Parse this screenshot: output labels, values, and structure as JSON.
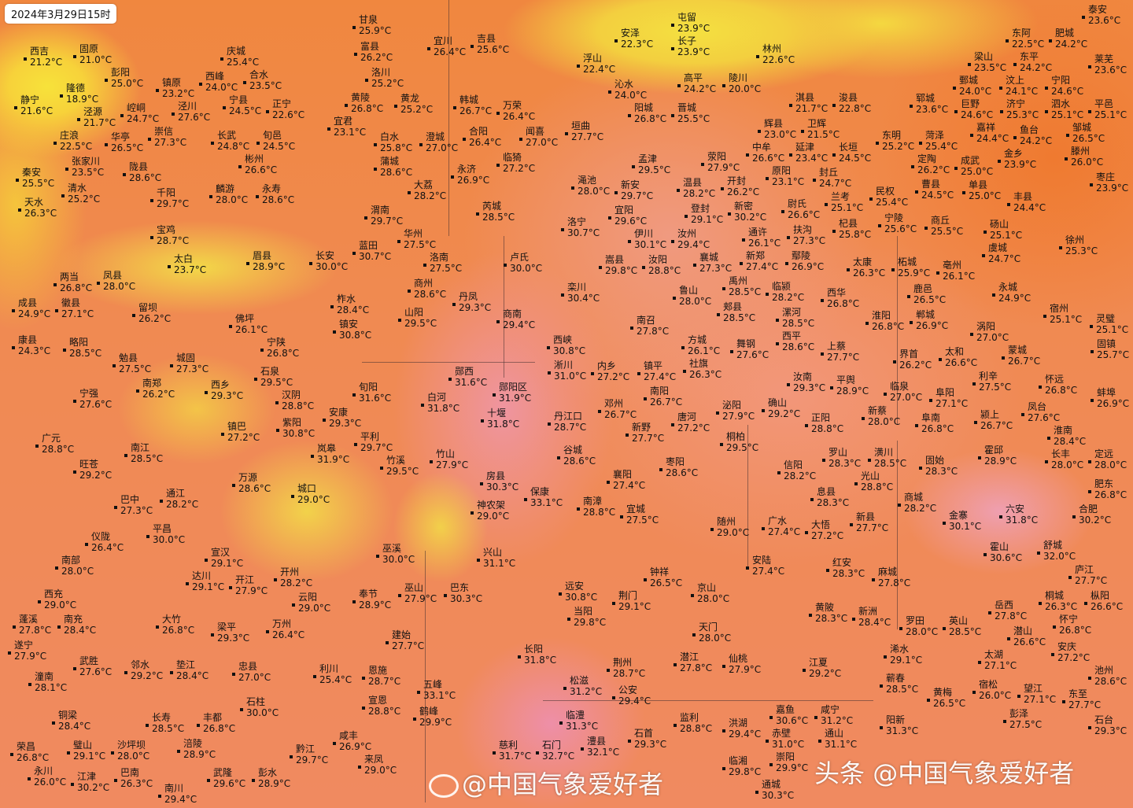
{
  "timestamp": "2024年3月29日15时",
  "watermarks": {
    "weibo": "@中国气象爱好者",
    "toutiao_brand": "头条",
    "toutiao": "@中国气象爱好者"
  },
  "colors": {
    "cool": "#f7e23a",
    "warm": "#f08a52",
    "hot": "#ef95a0",
    "label": "#111111"
  },
  "cities": [
    {
      "name": "西吉",
      "temp": "21.2°C"
    },
    {
      "name": "固原",
      "temp": "21.0°C"
    },
    {
      "name": "彭阳",
      "temp": "25.0°C"
    },
    {
      "name": "隆德",
      "temp": "18.9°C"
    },
    {
      "name": "静宁",
      "temp": "21.6°C"
    },
    {
      "name": "泾源",
      "temp": "21.7°C"
    },
    {
      "name": "庄浪",
      "temp": "22.5°C"
    },
    {
      "name": "张家川",
      "temp": "23.5°C"
    },
    {
      "name": "清水",
      "temp": "25.2°C"
    },
    {
      "name": "秦安",
      "temp": "25.5°C"
    },
    {
      "name": "天水",
      "temp": "26.3°C"
    },
    {
      "name": "镇原",
      "temp": "23.2°C"
    },
    {
      "name": "西峰",
      "temp": "24.0°C"
    },
    {
      "name": "崆峒",
      "temp": "24.7°C"
    },
    {
      "name": "华亭",
      "temp": "26.5°C"
    },
    {
      "name": "崇信",
      "temp": "27.3°C"
    },
    {
      "name": "泾川",
      "temp": "27.6°C"
    },
    {
      "name": "陇县",
      "temp": "28.6°C"
    },
    {
      "name": "长武",
      "temp": "24.8°C"
    },
    {
      "name": "庆城",
      "temp": "25.4°C"
    },
    {
      "name": "合水",
      "temp": "23.5°C"
    },
    {
      "name": "宁县",
      "temp": "24.5°C"
    },
    {
      "name": "正宁",
      "temp": "22.6°C"
    },
    {
      "name": "甘泉",
      "temp": "25.9°C"
    },
    {
      "name": "富县",
      "temp": "26.2°C"
    },
    {
      "name": "洛川",
      "temp": "25.2°C"
    },
    {
      "name": "宜川",
      "temp": "26.4°C"
    },
    {
      "name": "吉县",
      "temp": "25.6°C"
    },
    {
      "name": "黄陵",
      "temp": "26.8°C"
    },
    {
      "name": "黄龙",
      "temp": "25.2°C"
    },
    {
      "name": "宜君",
      "temp": "23.1°C"
    },
    {
      "name": "韩城",
      "temp": "26.7°C"
    },
    {
      "name": "旬邑",
      "temp": "24.5°C"
    },
    {
      "name": "彬州",
      "temp": "26.6°C"
    },
    {
      "name": "麟游",
      "temp": "28.0°C"
    },
    {
      "name": "永寿",
      "temp": "28.6°C"
    },
    {
      "name": "千阳",
      "temp": "29.7°C"
    },
    {
      "name": "宝鸡",
      "temp": "28.7°C"
    },
    {
      "name": "太白",
      "temp": "23.7°C"
    },
    {
      "name": "眉县",
      "temp": "28.9°C"
    },
    {
      "name": "长安",
      "temp": "30.0°C"
    },
    {
      "name": "蓝田",
      "temp": "30.7°C"
    },
    {
      "name": "渭南",
      "temp": "29.7°C"
    },
    {
      "name": "华州",
      "temp": "27.5°C"
    },
    {
      "name": "白水",
      "temp": "25.8°C"
    },
    {
      "name": "澄城",
      "temp": "27.0°C"
    },
    {
      "name": "蒲城",
      "temp": "28.6°C"
    },
    {
      "name": "大荔",
      "temp": "28.2°C"
    },
    {
      "name": "合阳",
      "temp": "26.4°C"
    },
    {
      "name": "永济",
      "temp": "26.9°C"
    },
    {
      "name": "芮城",
      "temp": "28.5°C"
    },
    {
      "name": "临猗",
      "temp": "27.2°C"
    },
    {
      "name": "万荣",
      "temp": "26.4°C"
    },
    {
      "name": "闻喜",
      "temp": "27.0°C"
    },
    {
      "name": "垣曲",
      "temp": "27.7°C"
    },
    {
      "name": "渑池",
      "temp": "28.0°C"
    },
    {
      "name": "新安",
      "temp": "29.7°C"
    },
    {
      "name": "孟津",
      "temp": "29.5°C"
    },
    {
      "name": "洛宁",
      "temp": "30.7°C"
    },
    {
      "name": "宜阳",
      "temp": "29.6°C"
    },
    {
      "name": "伊川",
      "temp": "30.1°C"
    },
    {
      "name": "嵩县",
      "temp": "29.8°C"
    },
    {
      "name": "汝阳",
      "temp": "28.8°C"
    },
    {
      "name": "汝州",
      "temp": "29.4°C"
    },
    {
      "name": "登封",
      "temp": "29.1°C"
    },
    {
      "name": "新密",
      "temp": "30.2°C"
    },
    {
      "name": "卢氏",
      "temp": "30.0°C"
    },
    {
      "name": "洛南",
      "temp": "27.5°C"
    },
    {
      "name": "商州",
      "temp": "28.6°C"
    },
    {
      "name": "丹凤",
      "temp": "29.3°C"
    },
    {
      "name": "山阳",
      "temp": "29.5°C"
    },
    {
      "name": "柞水",
      "temp": "28.4°C"
    },
    {
      "name": "镇安",
      "temp": "30.8°C"
    },
    {
      "name": "商南",
      "temp": "29.4°C"
    },
    {
      "name": "栾川",
      "temp": "30.4°C"
    },
    {
      "name": "西峡",
      "temp": "30.8°C"
    },
    {
      "name": "淅川",
      "temp": "31.0°C"
    },
    {
      "name": "内乡",
      "temp": "27.2°C"
    },
    {
      "name": "镇平",
      "temp": "27.4°C"
    },
    {
      "name": "南阳",
      "temp": "26.7°C"
    },
    {
      "name": "南召",
      "temp": "27.8°C"
    },
    {
      "name": "方城",
      "temp": "26.1°C"
    },
    {
      "name": "社旗",
      "temp": "26.3°C"
    },
    {
      "name": "鲁山",
      "temp": "28.0°C"
    },
    {
      "name": "郧西",
      "temp": "31.6°C"
    },
    {
      "name": "郧阳区",
      "temp": "31.9°C"
    },
    {
      "name": "十堰",
      "temp": "31.8°C"
    },
    {
      "name": "白河",
      "temp": "31.8°C"
    },
    {
      "name": "旬阳",
      "temp": "31.6°C"
    },
    {
      "name": "安康",
      "temp": "29.3°C"
    },
    {
      "name": "紫阳",
      "temp": "30.8°C"
    },
    {
      "name": "岚皋",
      "temp": "31.9°C"
    },
    {
      "name": "平利",
      "temp": "29.7°C"
    },
    {
      "name": "竹溪",
      "temp": "29.5°C"
    },
    {
      "name": "竹山",
      "temp": "27.9°C"
    },
    {
      "name": "房县",
      "temp": "30.3°C"
    },
    {
      "name": "保康",
      "temp": "33.1°C"
    },
    {
      "name": "神农架",
      "temp": "29.0°C"
    },
    {
      "name": "丹江口",
      "temp": "28.7°C"
    },
    {
      "name": "谷城",
      "temp": "28.6°C"
    },
    {
      "name": "邓州",
      "temp": "26.7°C"
    },
    {
      "name": "新野",
      "temp": "27.7°C"
    },
    {
      "name": "唐河",
      "temp": "27.2°C"
    },
    {
      "name": "泌阳",
      "temp": "27.9°C"
    },
    {
      "name": "桐柏",
      "temp": "29.5°C"
    },
    {
      "name": "襄阳",
      "temp": "27.4°C"
    },
    {
      "name": "枣阳",
      "temp": "28.6°C"
    },
    {
      "name": "南漳",
      "temp": "28.8°C"
    },
    {
      "name": "宜城",
      "temp": "27.5°C"
    },
    {
      "name": "随州",
      "temp": "29.0°C"
    },
    {
      "name": "广水",
      "temp": "27.4°C"
    },
    {
      "name": "大悟",
      "temp": "27.2°C"
    },
    {
      "name": "信阳",
      "temp": "28.2°C"
    },
    {
      "name": "罗山",
      "temp": "28.3°C"
    },
    {
      "name": "光山",
      "temp": "28.8°C"
    },
    {
      "name": "潢川",
      "temp": "28.5°C"
    },
    {
      "name": "商城",
      "temp": "28.2°C"
    },
    {
      "name": "新县",
      "temp": "27.7°C"
    },
    {
      "name": "固始",
      "temp": "28.3°C"
    },
    {
      "name": "金寨",
      "temp": "30.1°C"
    },
    {
      "name": "六安",
      "temp": "31.8°C"
    },
    {
      "name": "霍山",
      "temp": "30.6°C"
    },
    {
      "name": "舒城",
      "temp": "32.0°C"
    },
    {
      "name": "合肥",
      "temp": "30.2°C"
    },
    {
      "name": "肥东",
      "temp": "26.8°C"
    },
    {
      "name": "庐江",
      "temp": "27.7°C"
    },
    {
      "name": "桐城",
      "temp": "26.3°C"
    },
    {
      "name": "岳西",
      "temp": "27.8°C"
    },
    {
      "name": "潜山",
      "temp": "26.6°C"
    },
    {
      "name": "怀宁",
      "temp": "26.8°C"
    },
    {
      "name": "太湖",
      "temp": "27.1°C"
    },
    {
      "name": "安庆",
      "temp": "27.2°C"
    },
    {
      "name": "枞阳",
      "temp": "26.6°C"
    },
    {
      "name": "池州",
      "temp": "28.6°C"
    },
    {
      "name": "罗田",
      "temp": "28.0°C"
    },
    {
      "name": "英山",
      "temp": "28.5°C"
    },
    {
      "name": "红安",
      "temp": "28.3°C"
    },
    {
      "name": "麻城",
      "temp": "27.8°C"
    },
    {
      "name": "黄陂",
      "temp": "28.3°C"
    },
    {
      "name": "新洲",
      "temp": "28.4°C"
    },
    {
      "name": "浠水",
      "temp": "29.1°C"
    },
    {
      "name": "安陆",
      "temp": "27.4°C"
    },
    {
      "name": "钟祥",
      "temp": "26.5°C"
    },
    {
      "name": "荆门",
      "temp": "29.1°C"
    },
    {
      "name": "京山",
      "temp": "28.0°C"
    },
    {
      "name": "天门",
      "temp": "28.0°C"
    },
    {
      "name": "潜江",
      "temp": "27.8°C"
    },
    {
      "name": "仙桃",
      "temp": "27.9°C"
    },
    {
      "name": "荆州",
      "temp": "28.7°C"
    },
    {
      "name": "公安",
      "temp": "29.4°C"
    },
    {
      "name": "松滋",
      "temp": "31.2°C"
    },
    {
      "name": "当阳",
      "temp": "29.8°C"
    },
    {
      "name": "远安",
      "temp": "30.8°C"
    },
    {
      "name": "长阳",
      "temp": "31.8°C"
    },
    {
      "name": "巴东",
      "temp": "30.3°C"
    },
    {
      "name": "兴山",
      "temp": "31.1°C"
    },
    {
      "name": "巫溪",
      "temp": "30.0°C"
    },
    {
      "name": "巫山",
      "temp": "27.9°C"
    },
    {
      "name": "奉节",
      "temp": "28.9°C"
    },
    {
      "name": "建始",
      "temp": "27.7°C"
    },
    {
      "name": "恩施",
      "temp": "28.7°C"
    },
    {
      "name": "利川",
      "temp": "25.4°C"
    },
    {
      "name": "宣恩",
      "temp": "28.8°C"
    },
    {
      "name": "五峰",
      "temp": "33.1°C"
    },
    {
      "name": "鹤峰",
      "temp": "29.9°C"
    },
    {
      "name": "咸丰",
      "temp": "26.9°C"
    },
    {
      "name": "来凤",
      "temp": "29.0°C"
    },
    {
      "name": "石门",
      "temp": "32.7°C"
    },
    {
      "name": "澧县",
      "temp": "32.1°C"
    },
    {
      "name": "慈利",
      "temp": "31.7°C"
    },
    {
      "name": "临澧",
      "temp": "31.3°C"
    },
    {
      "name": "石首",
      "temp": "29.3°C"
    },
    {
      "name": "监利",
      "temp": "28.8°C"
    },
    {
      "name": "洪湖",
      "temp": "29.4°C"
    },
    {
      "name": "嘉鱼",
      "temp": "30.6°C"
    },
    {
      "name": "赤壁",
      "temp": "31.0°C"
    },
    {
      "name": "咸宁",
      "temp": "31.2°C"
    },
    {
      "name": "崇阳",
      "temp": "29.9°C"
    },
    {
      "name": "通城",
      "temp": "30.3°C"
    },
    {
      "name": "通山",
      "temp": "31.1°C"
    },
    {
      "name": "临湘",
      "temp": "29.8°C"
    },
    {
      "name": "江夏",
      "temp": "29.2°C"
    },
    {
      "name": "蕲春",
      "temp": "28.5°C"
    },
    {
      "name": "阳新",
      "temp": "31.3°C"
    },
    {
      "name": "黄梅",
      "temp": "26.5°C"
    },
    {
      "name": "宿松",
      "temp": "26.0°C"
    },
    {
      "name": "望江",
      "temp": "27.1°C"
    },
    {
      "name": "东至",
      "temp": "27.7°C"
    },
    {
      "name": "彭泽",
      "temp": "27.5°C"
    },
    {
      "name": "石台",
      "temp": "29.3°C"
    },
    {
      "name": "林州",
      "temp": "22.6°C"
    },
    {
      "name": "淇县",
      "temp": "21.7°C"
    },
    {
      "name": "浚县",
      "temp": "22.8°C"
    },
    {
      "name": "辉县",
      "temp": "23.0°C"
    },
    {
      "name": "卫辉",
      "temp": "21.5°C"
    },
    {
      "name": "延津",
      "temp": "23.4°C"
    },
    {
      "name": "封丘",
      "temp": "24.7°C"
    },
    {
      "name": "原阳",
      "temp": "23.1°C"
    },
    {
      "name": "长垣",
      "temp": "24.5°C"
    },
    {
      "name": "东明",
      "temp": "25.2°C"
    },
    {
      "name": "菏泽",
      "temp": "25.4°C"
    },
    {
      "name": "定陶",
      "temp": "26.2°C"
    },
    {
      "name": "曹县",
      "temp": "24.5°C"
    },
    {
      "name": "成武",
      "temp": "25.0°C"
    },
    {
      "name": "单县",
      "temp": "25.0°C"
    },
    {
      "name": "金乡",
      "temp": "23.9°C"
    },
    {
      "name": "鱼台",
      "temp": "24.2°C"
    },
    {
      "name": "丰县",
      "temp": "24.4°C"
    },
    {
      "name": "滕州",
      "temp": "26.0°C"
    },
    {
      "name": "枣庄",
      "temp": "23.9°C"
    },
    {
      "name": "徐州",
      "temp": "25.3°C"
    },
    {
      "name": "砀山",
      "temp": "25.1°C"
    },
    {
      "name": "永城",
      "temp": "24.9°C"
    },
    {
      "name": "宿州",
      "temp": "25.1°C"
    },
    {
      "name": "灵璧",
      "temp": "25.1°C"
    },
    {
      "name": "固镇",
      "temp": "25.7°C"
    },
    {
      "name": "涡阳",
      "temp": "27.0°C"
    },
    {
      "name": "蒙城",
      "temp": "26.7°C"
    },
    {
      "name": "利辛",
      "temp": "27.5°C"
    },
    {
      "name": "怀远",
      "temp": "26.8°C"
    },
    {
      "name": "蚌埠",
      "temp": "26.9°C"
    },
    {
      "name": "凤台",
      "temp": "27.6°C"
    },
    {
      "name": "淮南",
      "temp": "28.4°C"
    },
    {
      "name": "颍上",
      "temp": "26.7°C"
    },
    {
      "name": "阜南",
      "temp": "26.8°C"
    },
    {
      "name": "阜阳",
      "temp": "27.1°C"
    },
    {
      "name": "临泉",
      "temp": "27.0°C"
    },
    {
      "name": "界首",
      "temp": "26.2°C"
    },
    {
      "name": "太和",
      "temp": "26.6°C"
    },
    {
      "name": "霍邱",
      "temp": "28.9°C"
    },
    {
      "name": "定远",
      "temp": "28.0°C"
    },
    {
      "name": "长丰",
      "temp": "28.0°C"
    },
    {
      "name": "柘城",
      "temp": "25.9°C"
    },
    {
      "name": "鹿邑",
      "temp": "26.5°C"
    },
    {
      "name": "亳州",
      "temp": "26.1°C"
    },
    {
      "name": "商丘",
      "temp": "25.5°C"
    },
    {
      "name": "虞城",
      "temp": "24.7°C"
    },
    {
      "name": "宁陵",
      "temp": "25.6°C"
    },
    {
      "name": "民权",
      "temp": "25.4°C"
    },
    {
      "name": "兰考",
      "temp": "25.1°C"
    },
    {
      "name": "杞县",
      "temp": "25.8°C"
    },
    {
      "name": "太康",
      "temp": "26.3°C"
    },
    {
      "name": "西华",
      "temp": "26.8°C"
    },
    {
      "name": "淮阳",
      "temp": "26.8°C"
    },
    {
      "name": "郸城",
      "temp": "26.9°C"
    },
    {
      "name": "平舆",
      "temp": "28.9°C"
    },
    {
      "name": "新蔡",
      "temp": "28.0°C"
    },
    {
      "name": "正阳",
      "temp": "28.8°C"
    },
    {
      "name": "息县",
      "temp": "28.3°C"
    },
    {
      "name": "汝南",
      "temp": "29.3°C"
    },
    {
      "name": "确山",
      "temp": "29.2°C"
    },
    {
      "name": "西平",
      "temp": "28.6°C"
    },
    {
      "name": "上蔡",
      "temp": "27.7°C"
    },
    {
      "name": "漯河",
      "temp": "28.5°C"
    },
    {
      "name": "临颍",
      "temp": "28.2°C"
    },
    {
      "name": "鄢陵",
      "temp": "26.9°C"
    },
    {
      "name": "扶沟",
      "temp": "27.3°C"
    },
    {
      "name": "尉氏",
      "temp": "26.6°C"
    },
    {
      "name": "通许",
      "temp": "26.1°C"
    },
    {
      "name": "开封",
      "temp": "26.2°C"
    },
    {
      "name": "中牟",
      "temp": "26.6°C"
    },
    {
      "name": "新郑",
      "temp": "27.4°C"
    },
    {
      "name": "禹州",
      "temp": "28.5°C"
    },
    {
      "name": "郏县",
      "temp": "28.5°C"
    },
    {
      "name": "襄城",
      "temp": "27.3°C"
    },
    {
      "name": "舞钢",
      "temp": "27.6°C"
    },
    {
      "name": "荥阳",
      "temp": "27.9°C"
    },
    {
      "name": "温县",
      "temp": "28.2°C"
    },
    {
      "name": "沁水",
      "temp": "24.0°C"
    },
    {
      "name": "阳城",
      "temp": "26.8°C"
    },
    {
      "name": "晋城",
      "temp": "25.5°C"
    },
    {
      "name": "高平",
      "temp": "24.2°C"
    },
    {
      "name": "陵川",
      "temp": "20.0°C"
    },
    {
      "name": "屯留",
      "temp": "23.9°C"
    },
    {
      "name": "长子",
      "temp": "23.9°C"
    },
    {
      "name": "安泽",
      "temp": "22.3°C"
    },
    {
      "name": "浮山",
      "temp": "22.4°C"
    },
    {
      "name": "肥城",
      "temp": "24.2°C"
    },
    {
      "name": "泰安",
      "temp": "23.6°C"
    },
    {
      "name": "莱芜",
      "temp": "23.6°C"
    },
    {
      "name": "宁阳",
      "temp": "24.6°C"
    },
    {
      "name": "平邑",
      "temp": "25.1°C"
    },
    {
      "name": "泗水",
      "temp": "25.1°C"
    },
    {
      "name": "邹城",
      "temp": "26.5°C"
    },
    {
      "name": "济宁",
      "temp": "25.3°C"
    },
    {
      "name": "嘉祥",
      "temp": "24.4°C"
    },
    {
      "name": "巨野",
      "temp": "24.6°C"
    },
    {
      "name": "汶上",
      "temp": "24.1°C"
    },
    {
      "name": "东平",
      "temp": "24.2°C"
    },
    {
      "name": "梁山",
      "temp": "23.5°C"
    },
    {
      "name": "郓城",
      "temp": "23.6°C"
    },
    {
      "name": "鄄城",
      "temp": "24.0°C"
    },
    {
      "name": "东阿",
      "temp": "22.5°C"
    },
    {
      "name": "宁强",
      "temp": "27.6°C"
    },
    {
      "name": "略阳",
      "temp": "28.5°C"
    },
    {
      "name": "勉县",
      "temp": "27.5°C"
    },
    {
      "name": "南郑",
      "temp": "26.2°C"
    },
    {
      "name": "城固",
      "temp": "27.3°C"
    },
    {
      "name": "西乡",
      "temp": "29.3°C"
    },
    {
      "name": "石泉",
      "temp": "29.5°C"
    },
    {
      "name": "汉阴",
      "temp": "28.8°C"
    },
    {
      "name": "宁陕",
      "temp": "26.8°C"
    },
    {
      "name": "佛坪",
      "temp": "26.1°C"
    },
    {
      "name": "留坝",
      "temp": "26.2°C"
    },
    {
      "name": "凤县",
      "temp": "28.0°C"
    },
    {
      "name": "两当",
      "temp": "26.8°C"
    },
    {
      "name": "徽县",
      "temp": "27.1°C"
    },
    {
      "name": "成县",
      "temp": "24.9°C"
    },
    {
      "name": "康县",
      "temp": "24.3°C"
    },
    {
      "name": "镇巴",
      "temp": "27.2°C"
    },
    {
      "name": "广元",
      "temp": "28.8°C"
    },
    {
      "name": "旺苍",
      "temp": "29.2°C"
    },
    {
      "name": "南江",
      "temp": "28.5°C"
    },
    {
      "name": "通江",
      "temp": "28.2°C"
    },
    {
      "name": "巴中",
      "temp": "27.3°C"
    },
    {
      "name": "平昌",
      "temp": "30.0°C"
    },
    {
      "name": "仪陇",
      "temp": "26.4°C"
    },
    {
      "name": "南部",
      "temp": "28.0°C"
    },
    {
      "name": "万源",
      "temp": "28.6°C"
    },
    {
      "name": "城口",
      "temp": "29.0°C"
    },
    {
      "name": "宣汉",
      "temp": "29.1°C"
    },
    {
      "name": "达川",
      "temp": "29.1°C"
    },
    {
      "name": "开江",
      "temp": "27.9°C"
    },
    {
      "name": "开州",
      "temp": "28.2°C"
    },
    {
      "name": "云阳",
      "temp": "29.0°C"
    },
    {
      "name": "万州",
      "temp": "26.4°C"
    },
    {
      "name": "梁平",
      "temp": "29.3°C"
    },
    {
      "name": "忠县",
      "temp": "27.0°C"
    },
    {
      "name": "石柱",
      "temp": "30.0°C"
    },
    {
      "name": "丰都",
      "temp": "26.8°C"
    },
    {
      "name": "垫江",
      "temp": "28.4°C"
    },
    {
      "name": "长寿",
      "temp": "28.5°C"
    },
    {
      "name": "涪陵",
      "temp": "28.9°C"
    },
    {
      "name": "西充",
      "temp": "29.0°C"
    },
    {
      "name": "南充",
      "temp": "28.4°C"
    },
    {
      "name": "蓬溪",
      "temp": "27.8°C"
    },
    {
      "name": "大竹",
      "temp": "26.8°C"
    },
    {
      "name": "遂宁",
      "temp": "27.9°C"
    },
    {
      "name": "武胜",
      "temp": "27.6°C"
    },
    {
      "name": "邻水",
      "temp": "29.2°C"
    },
    {
      "name": "潼南",
      "temp": "28.1°C"
    },
    {
      "name": "铜梁",
      "temp": "28.4°C"
    },
    {
      "name": "璧山",
      "temp": "29.1°C"
    },
    {
      "name": "沙坪坝",
      "temp": "28.0°C"
    },
    {
      "name": "江津",
      "temp": "30.2°C"
    },
    {
      "name": "巴南",
      "temp": "26.3°C"
    },
    {
      "name": "永川",
      "temp": "26.0°C"
    },
    {
      "name": "荣昌",
      "temp": "26.8°C"
    },
    {
      "name": "南川",
      "temp": "29.4°C"
    },
    {
      "name": "武隆",
      "temp": "29.6°C"
    },
    {
      "name": "彭水",
      "temp": "28.9°C"
    },
    {
      "name": "黔江",
      "temp": "29.7°C"
    }
  ]
}
